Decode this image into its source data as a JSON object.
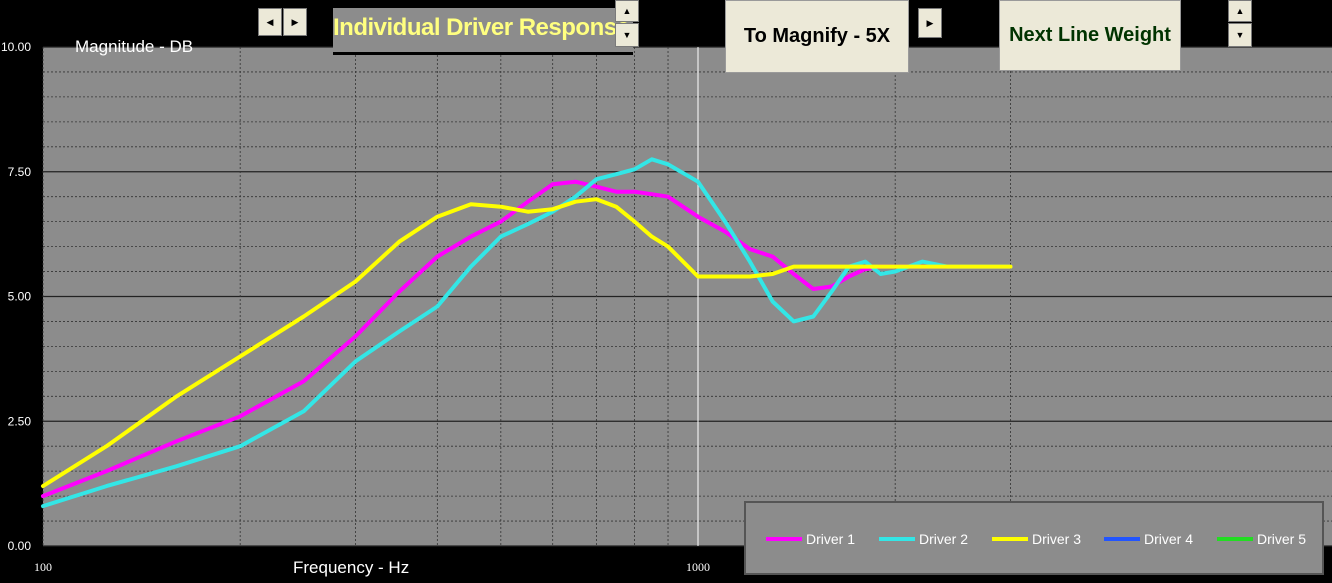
{
  "toolbar": {
    "title": "Individual Driver Response",
    "magnify_label": "To Magnify - 5X",
    "line_weight_label": "Next Line Weight"
  },
  "chart_data": {
    "type": "line",
    "xscale": "log",
    "xlim": [
      100,
      3000
    ],
    "ylim": [
      0,
      10
    ],
    "yticks": [
      "10.00",
      "7.50",
      "5.00",
      "2.50",
      "0.00"
    ],
    "xticks": [
      "100",
      "1000"
    ],
    "xlabel": "Frequency  -  Hz",
    "ylabel": "Magnitude  -  DB",
    "grid": true,
    "legend_position": "bottom-right",
    "marker_frequency": 1000,
    "series": [
      {
        "name": "Driver 1",
        "color": "#ff00ff",
        "x": [
          100,
          125,
          160,
          200,
          250,
          300,
          350,
          400,
          450,
          500,
          550,
          600,
          650,
          700,
          750,
          800,
          850,
          900,
          1000,
          1100,
          1200,
          1300,
          1400,
          1500,
          1600,
          1700,
          1800,
          1900,
          2000,
          2200,
          2400,
          2600,
          2800,
          3000
        ],
        "y": [
          1.0,
          1.5,
          2.1,
          2.6,
          3.3,
          4.2,
          5.1,
          5.8,
          6.2,
          6.5,
          6.9,
          7.25,
          7.3,
          7.2,
          7.1,
          7.1,
          7.05,
          7.0,
          6.6,
          6.3,
          5.95,
          5.8,
          5.45,
          5.15,
          5.2,
          5.4,
          5.55,
          5.6,
          5.6,
          5.6,
          5.6,
          5.6,
          5.6,
          5.6
        ]
      },
      {
        "name": "Driver 2",
        "color": "#33e6e6",
        "x": [
          100,
          125,
          160,
          200,
          250,
          300,
          350,
          400,
          450,
          500,
          550,
          600,
          650,
          700,
          750,
          800,
          850,
          900,
          1000,
          1100,
          1200,
          1300,
          1400,
          1500,
          1600,
          1700,
          1800,
          1900,
          2000,
          2200,
          2400,
          2600,
          2800,
          3000
        ],
        "y": [
          0.8,
          1.2,
          1.6,
          2.0,
          2.7,
          3.7,
          4.3,
          4.8,
          5.6,
          6.2,
          6.45,
          6.7,
          7.0,
          7.35,
          7.45,
          7.55,
          7.75,
          7.65,
          7.3,
          6.5,
          5.7,
          4.9,
          4.5,
          4.6,
          5.1,
          5.6,
          5.7,
          5.45,
          5.5,
          5.7,
          5.6,
          5.6,
          5.6,
          5.6
        ]
      },
      {
        "name": "Driver 3",
        "color": "#ffff00",
        "x": [
          100,
          125,
          160,
          200,
          250,
          300,
          350,
          400,
          450,
          500,
          550,
          600,
          650,
          700,
          750,
          800,
          850,
          900,
          1000,
          1100,
          1200,
          1300,
          1400,
          1500,
          1600,
          1700,
          1800,
          1900,
          2000,
          2200,
          2400,
          2600,
          2800,
          3000
        ],
        "y": [
          1.2,
          2.0,
          3.0,
          3.8,
          4.6,
          5.3,
          6.1,
          6.6,
          6.85,
          6.8,
          6.7,
          6.75,
          6.9,
          6.95,
          6.8,
          6.5,
          6.2,
          6.0,
          5.4,
          5.4,
          5.4,
          5.45,
          5.6,
          5.6,
          5.6,
          5.6,
          5.6,
          5.6,
          5.6,
          5.6,
          5.6,
          5.6,
          5.6,
          5.6
        ]
      },
      {
        "name": "Driver 4",
        "color": "#2255ff",
        "x": [],
        "y": []
      },
      {
        "name": "Driver 5",
        "color": "#22dd22",
        "x": [],
        "y": []
      }
    ]
  }
}
